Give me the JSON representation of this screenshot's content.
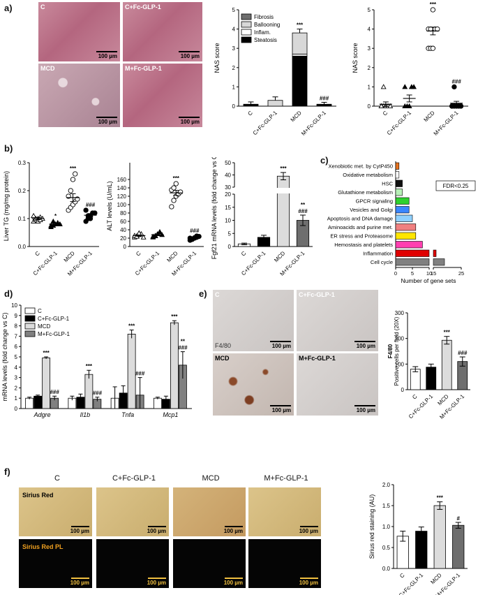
{
  "panel_labels": {
    "a": "a)",
    "b": "b)",
    "c": "c)",
    "d": "d)",
    "e": "e)",
    "f": "f)"
  },
  "panel_a": {
    "photos": [
      {
        "label": "C",
        "scale": "100 µm"
      },
      {
        "label": "C+Fc-GLP-1",
        "scale": "100 µm"
      },
      {
        "label": "MCD",
        "scale": "100 µm"
      },
      {
        "label": "M+Fc-GLP-1",
        "scale": "100 µm"
      }
    ]
  },
  "panel_e": {
    "photos": [
      {
        "label": "C",
        "scale": "100 µm"
      },
      {
        "label": "C+Fc-GLP-1",
        "scale": "100 µm"
      },
      {
        "label": "MCD",
        "scale": "100 µm"
      },
      {
        "label": "M+Fc-GLP-1",
        "scale": "100 µm"
      }
    ],
    "stain_label": "F4/80"
  },
  "panel_f": {
    "columns": [
      "C",
      "C+Fc-GLP-1",
      "MCD",
      "M+Fc-GLP-1"
    ],
    "row1_label": "Sirius Red",
    "row2_label": "Sirius Red PL",
    "scale": "100 µm"
  },
  "chart_data": [
    {
      "id": "a1",
      "type": "bar",
      "ylabel": "NAS score",
      "categories": [
        "C",
        "C+Fc-GLP-1",
        "MCD",
        "M+Fc-GLP-1"
      ],
      "ylim": [
        0,
        5
      ],
      "yticks": [
        0,
        1,
        2,
        3,
        4,
        5
      ],
      "series": [
        {
          "name": "Steatosis",
          "values": [
            0.1,
            0.0,
            2.6,
            0.1
          ]
        },
        {
          "name": "Inflam.",
          "values": [
            0.0,
            0.0,
            0.1,
            0.0
          ]
        },
        {
          "name": "Ballooning",
          "values": [
            0.0,
            0.3,
            1.1,
            0.0
          ]
        },
        {
          "name": "Fibrosis",
          "values": [
            0.0,
            0.0,
            0.0,
            0.0
          ]
        }
      ],
      "errors": [
        0.12,
        0.18,
        0.2,
        0.1
      ],
      "annotations": [
        "",
        "",
        "***",
        "###"
      ]
    },
    {
      "id": "a2",
      "type": "scatter",
      "ylabel": "NAS score",
      "categories": [
        "C",
        "C+Fc-GLP-1",
        "MCD",
        "M+Fc-GLP-1"
      ],
      "ylim": [
        0,
        5
      ],
      "yticks": [
        0,
        1,
        2,
        3,
        4,
        5
      ],
      "points": [
        [
          0,
          0,
          0,
          0,
          0,
          0,
          1
        ],
        [
          0,
          0,
          0,
          1,
          1,
          1
        ],
        [
          3,
          3,
          3,
          4,
          4,
          4,
          4,
          5
        ],
        [
          0,
          0,
          0,
          0,
          0,
          0,
          1
        ]
      ],
      "means": [
        0.1,
        0.4,
        3.9,
        0.15
      ],
      "sems": [
        0.12,
        0.18,
        0.2,
        0.1
      ],
      "annotations": [
        "",
        "",
        "***",
        "###"
      ]
    },
    {
      "id": "b1",
      "type": "scatter",
      "ylabel": "Liver TG (mg/mg protein)",
      "categories": [
        "C",
        "C+Fc-GLP-1",
        "MCD",
        "M+Fc-GLP-1"
      ],
      "ylim": [
        0,
        0.3
      ],
      "yticks": [
        0.0,
        0.1,
        0.2,
        0.3
      ],
      "points": [
        [
          0.09,
          0.095,
          0.1,
          0.105,
          0.1,
          0.11,
          0.1,
          0.09,
          0.095
        ],
        [
          0.07,
          0.075,
          0.08,
          0.085,
          0.08,
          0.075,
          0.09
        ],
        [
          0.13,
          0.14,
          0.15,
          0.16,
          0.17,
          0.18,
          0.2,
          0.24,
          0.26
        ],
        [
          0.09,
          0.1,
          0.11,
          0.12,
          0.12,
          0.13,
          0.11,
          0.1
        ]
      ],
      "means": [
        0.1,
        0.08,
        0.175,
        0.112
      ],
      "sems": [
        0.004,
        0.004,
        0.014,
        0.006
      ],
      "annotations": [
        "",
        "*",
        "***",
        "###"
      ]
    },
    {
      "id": "b2",
      "type": "scatter",
      "ylabel": "ALT levels (U/mL)",
      "categories": [
        "C",
        "C+Fc-GLP-1",
        "MCD",
        "M+Fc-GLP-1"
      ],
      "ylim": [
        0,
        200
      ],
      "yticks": [
        0,
        20,
        40,
        60,
        80,
        100,
        120,
        140,
        160
      ],
      "points": [
        [
          22,
          25,
          28,
          30,
          22,
          26,
          24,
          32
        ],
        [
          22,
          25,
          30,
          35,
          28,
          24,
          26
        ],
        [
          95,
          110,
          120,
          125,
          130,
          135,
          140,
          150
        ],
        [
          15,
          18,
          20,
          22,
          24,
          20,
          17,
          21,
          25
        ]
      ],
      "means": [
        26,
        28,
        128,
        21
      ],
      "sems": [
        1.5,
        2,
        6,
        1
      ],
      "annotations": [
        "",
        "",
        "***",
        "###"
      ]
    },
    {
      "id": "b3",
      "type": "bar",
      "ylabel": "Fgf21 mRNA levels (fold change vs C)",
      "categories": [
        "C",
        "C+Fc-GLP-1",
        "MCD",
        "M+Fc-GLP-1"
      ],
      "yticks": [
        0,
        5,
        10,
        15,
        20,
        30,
        40,
        50
      ],
      "values": [
        1.0,
        3.5,
        39.0,
        10.0
      ],
      "errors": [
        0.3,
        0.8,
        3.0,
        2.0
      ],
      "annotations": [
        "",
        "",
        "***",
        "**\n###"
      ]
    },
    {
      "id": "c",
      "type": "bar",
      "xlabel": "Number of gene sets",
      "legend": "FDR<0.25",
      "categories": [
        "Xenobiotic met. by CytP450",
        "Oxidative metabolism",
        "HSC",
        "Glutathione metabolism",
        "GPCR signaling",
        "Vesicles and Golgi",
        "Apoptosis and DNA damage",
        "Aminoacids and purine met.",
        "ER stress and Proteasome",
        "Hemostasis and platelets",
        "Inflammation",
        "Cell cycle"
      ],
      "values": [
        1,
        1,
        2,
        2,
        4,
        4,
        5,
        6,
        6,
        8,
        19,
        27
      ],
      "colors": [
        "#e8731f",
        "#ffffff",
        "#111111",
        "#b8f0b8",
        "#2fd12f",
        "#3a86ff",
        "#8fd0ff",
        "#f08080",
        "#ffe600",
        "#ff3fb0",
        "#e00000",
        "#808080"
      ],
      "xticks": [
        "0",
        "5",
        "10",
        "15",
        "25",
        "30"
      ]
    },
    {
      "id": "d",
      "type": "bar",
      "ylabel": "mRNA levels (fold change vs C)",
      "categories": [
        "Adgre",
        "Il1b",
        "Tnfa",
        "Mcp1"
      ],
      "ylim": [
        0,
        10
      ],
      "yticks": [
        0,
        1,
        2,
        3,
        4,
        5,
        6,
        7,
        8,
        9,
        10
      ],
      "series": [
        {
          "name": "C",
          "values": [
            1.0,
            1.0,
            1.0,
            1.0
          ]
        },
        {
          "name": "C+Fc-GLP-1",
          "values": [
            1.2,
            1.1,
            1.5,
            0.9
          ]
        },
        {
          "name": "MCD",
          "values": [
            4.9,
            3.3,
            7.2,
            8.3
          ]
        },
        {
          "name": "M+Fc-GLP-1",
          "values": [
            1.0,
            0.9,
            1.3,
            4.2
          ]
        }
      ],
      "errors": [
        [
          0.1,
          0.2,
          1.1,
          0.1
        ],
        [
          0.1,
          0.3,
          0.7,
          0.3
        ],
        [
          0.1,
          0.4,
          0.4,
          0.2
        ],
        [
          0.2,
          0.2,
          1.7,
          1.3
        ]
      ],
      "annotations": [
        [
          "",
          "",
          "***",
          "###"
        ],
        [
          "",
          "",
          "***",
          "###"
        ],
        [
          "",
          "",
          "***",
          "###"
        ],
        [
          "",
          "",
          "***",
          "**\n###"
        ]
      ]
    },
    {
      "id": "e",
      "type": "bar",
      "ylabel": "Positive cells per field (20X)",
      "ylabel_top": "F4/80",
      "categories": [
        "C",
        "C+Fc-GLP-1",
        "MCD",
        "M+Fc-GLP-1"
      ],
      "ylim": [
        0,
        300
      ],
      "yticks": [
        0,
        100,
        200,
        300
      ],
      "values": [
        80,
        88,
        193,
        110
      ],
      "errors": [
        10,
        12,
        15,
        18
      ],
      "annotations": [
        "",
        "",
        "***",
        "###"
      ]
    },
    {
      "id": "f",
      "type": "bar",
      "ylabel": "Sirius red staining (AU)",
      "categories": [
        "C",
        "C+Fc-GLP-1",
        "MCD",
        "M+Fc-GLP-1"
      ],
      "ylim": [
        0,
        2.0
      ],
      "yticks": [
        0.0,
        0.5,
        1.0,
        1.5,
        2.0
      ],
      "values": [
        0.77,
        0.89,
        1.5,
        1.03
      ],
      "errors": [
        0.12,
        0.1,
        0.09,
        0.07
      ],
      "annotations": [
        "",
        "",
        "***",
        "#"
      ]
    }
  ]
}
